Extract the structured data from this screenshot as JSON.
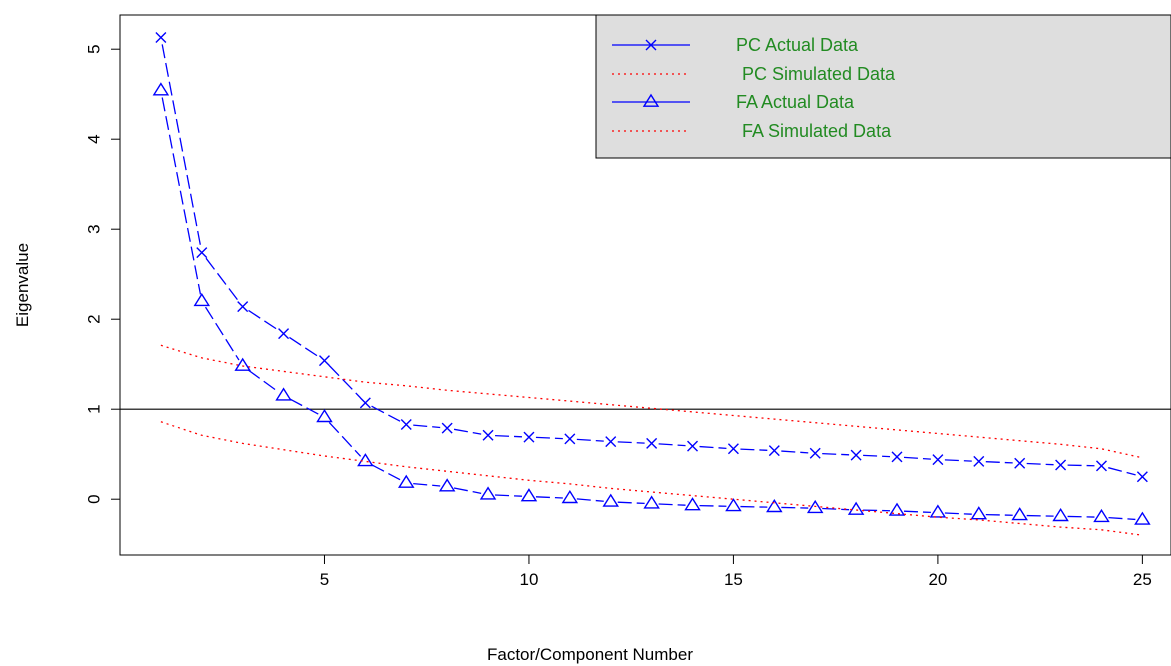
{
  "chart_data": {
    "type": "line",
    "title": "",
    "xlabel": "Factor/Component Number",
    "ylabel": "Eigenvalue",
    "xlim": [
      0.0,
      25.7
    ],
    "ylim": [
      -0.62,
      5.38
    ],
    "xticks": [
      5,
      10,
      15,
      20,
      25
    ],
    "yticks": [
      0,
      1,
      2,
      3,
      4,
      5
    ],
    "reference_line": {
      "y": 1
    },
    "grid": false,
    "legend_position": "top-right",
    "x": [
      1,
      2,
      3,
      4,
      5,
      6,
      7,
      8,
      9,
      10,
      11,
      12,
      13,
      14,
      15,
      16,
      17,
      18,
      19,
      20,
      21,
      22,
      23,
      24,
      25
    ],
    "series": [
      {
        "name": "PC Actual Data",
        "style": "long-dash",
        "marker": "x",
        "values": [
          5.13,
          2.74,
          2.14,
          1.84,
          1.54,
          1.07,
          0.83,
          0.79,
          0.71,
          0.69,
          0.67,
          0.64,
          0.62,
          0.59,
          0.56,
          0.54,
          0.51,
          0.49,
          0.47,
          0.44,
          0.42,
          0.4,
          0.38,
          0.37,
          0.25
        ]
      },
      {
        "name": "PC Simulated Data",
        "style": "dotted",
        "marker": "none",
        "values": [
          1.71,
          1.57,
          1.48,
          1.42,
          1.36,
          1.3,
          1.26,
          1.21,
          1.17,
          1.13,
          1.09,
          1.05,
          1.01,
          0.97,
          0.93,
          0.89,
          0.85,
          0.81,
          0.77,
          0.73,
          0.69,
          0.65,
          0.61,
          0.56,
          0.46
        ]
      },
      {
        "name": "FA Actual Data",
        "style": "long-dash",
        "marker": "triangle",
        "values": [
          4.54,
          2.2,
          1.48,
          1.15,
          0.91,
          0.42,
          0.18,
          0.14,
          0.05,
          0.03,
          0.01,
          -0.03,
          -0.05,
          -0.07,
          -0.08,
          -0.09,
          -0.1,
          -0.12,
          -0.13,
          -0.15,
          -0.17,
          -0.18,
          -0.19,
          -0.2,
          -0.23
        ]
      },
      {
        "name": "FA Simulated Data",
        "style": "dotted",
        "marker": "none",
        "values": [
          0.86,
          0.71,
          0.62,
          0.55,
          0.48,
          0.42,
          0.36,
          0.31,
          0.26,
          0.21,
          0.17,
          0.12,
          0.08,
          0.04,
          0.0,
          -0.04,
          -0.08,
          -0.12,
          -0.16,
          -0.2,
          -0.23,
          -0.27,
          -0.31,
          -0.34,
          -0.4
        ]
      }
    ],
    "legend": [
      {
        "marker": "x",
        "label": "PC  Actual Data"
      },
      {
        "marker": "none",
        "label": "PC  Simulated Data"
      },
      {
        "marker": "triangle",
        "label": "FA  Actual Data"
      },
      {
        "marker": "none",
        "label": "FA  Simulated Data"
      }
    ],
    "colors": {
      "actual": "#0000ff",
      "simulated": "#ff0000",
      "legend_text": "#228B22",
      "legend_bg": "#dedede",
      "axis": "#000000"
    }
  }
}
